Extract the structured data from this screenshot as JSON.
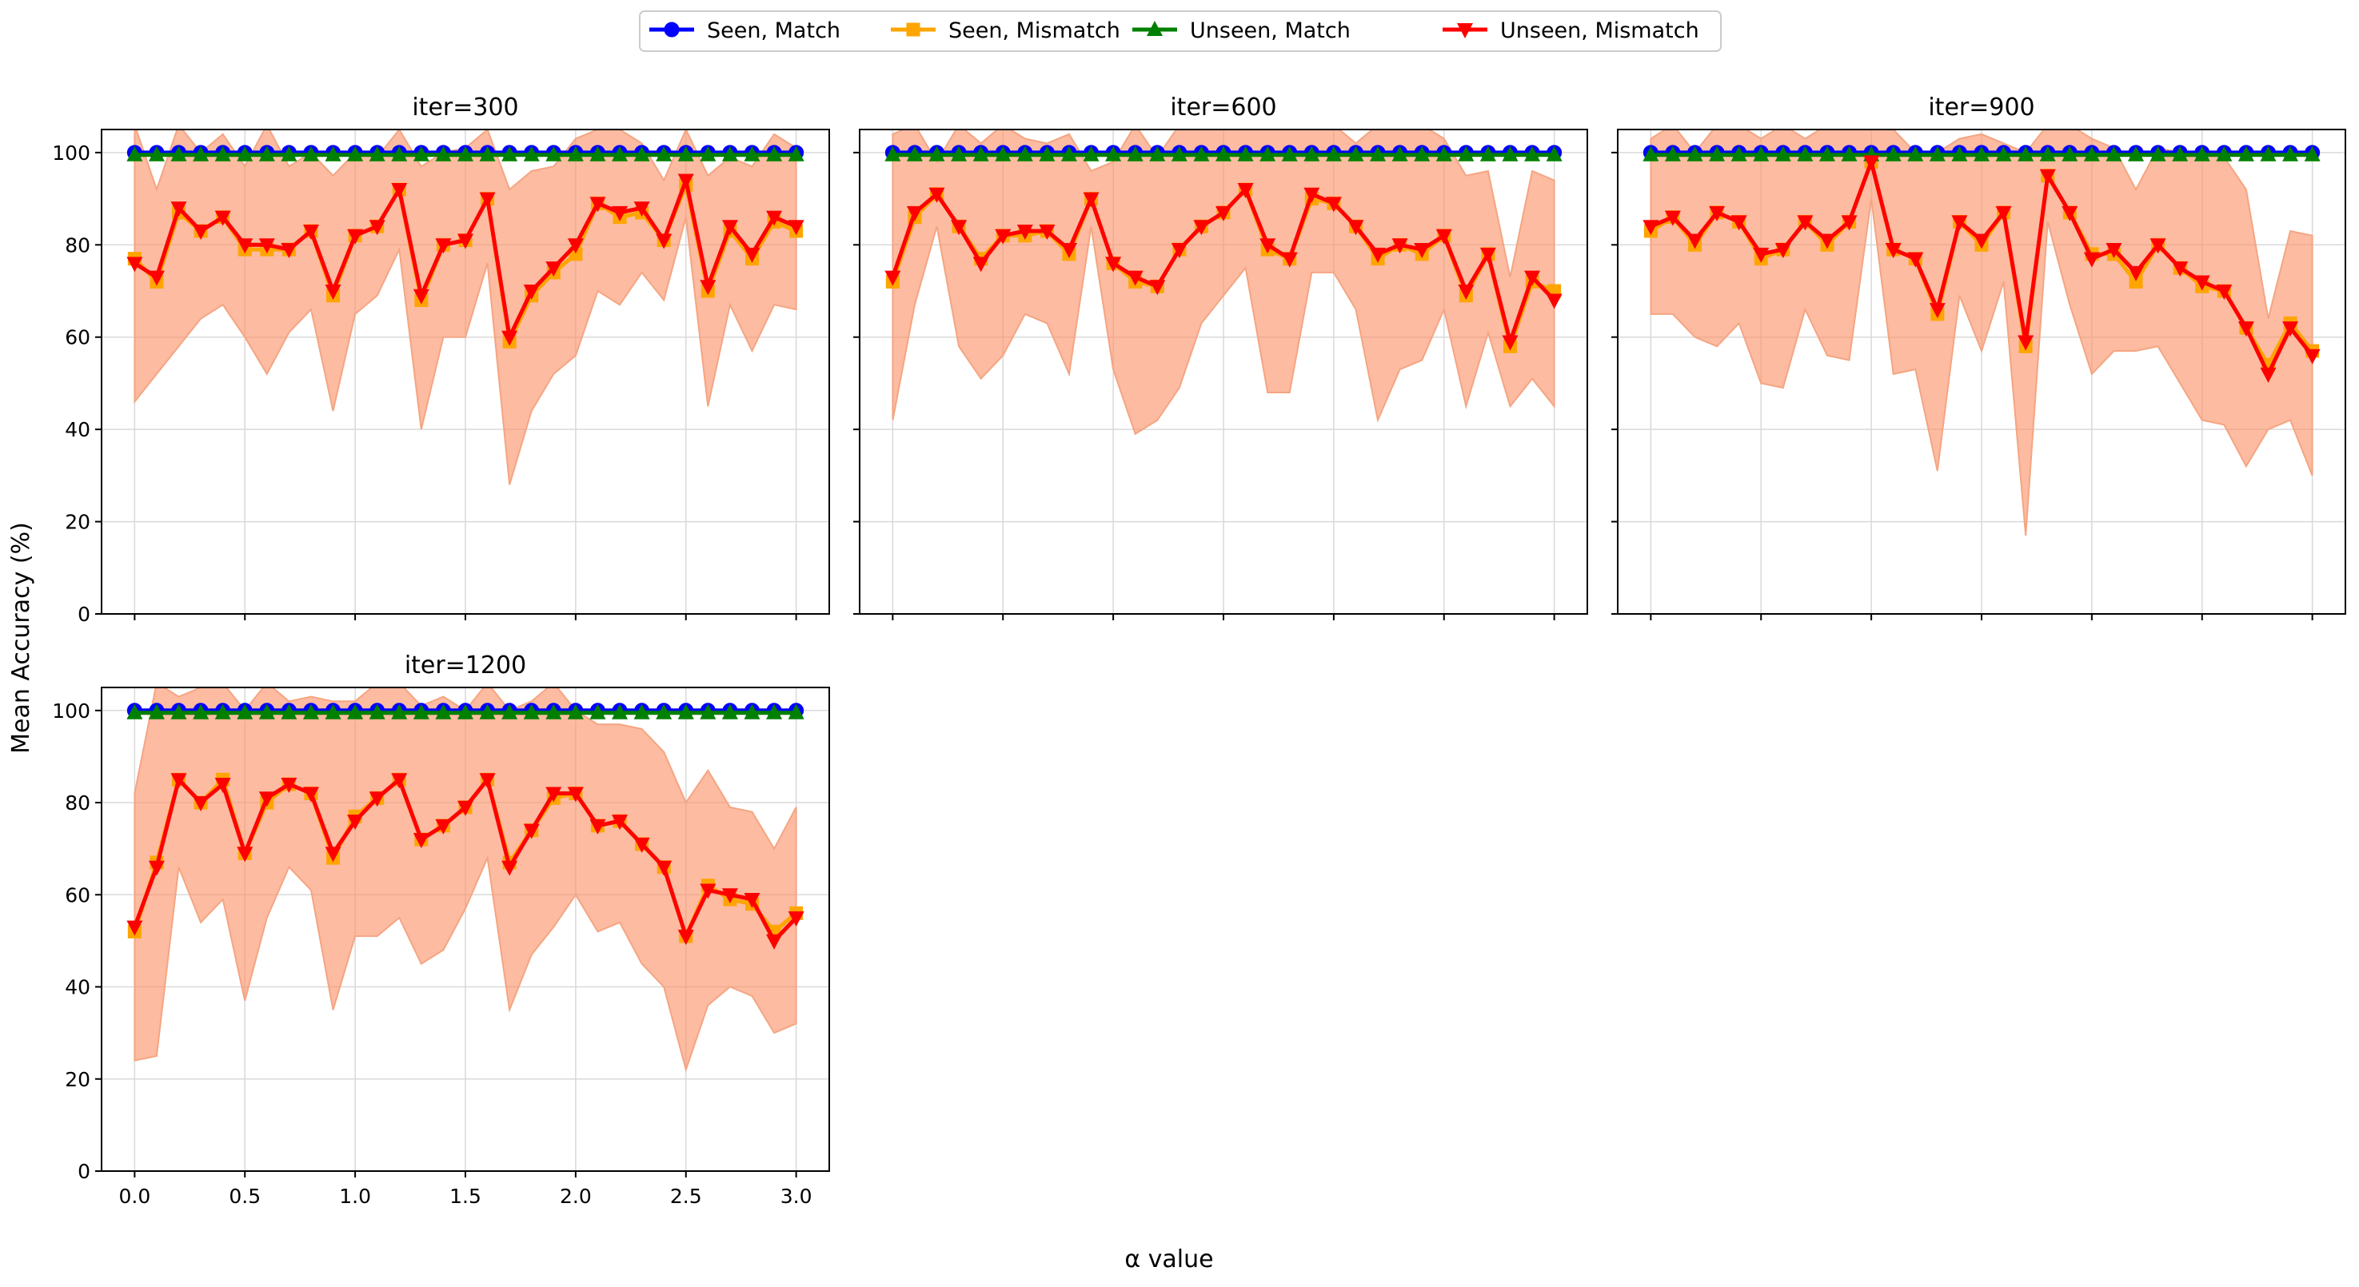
{
  "figure": {
    "ylabel": "Mean Accuracy (%)",
    "xlabel": "α value"
  },
  "legend": {
    "placement": "top-center",
    "entries": [
      {
        "label": "Seen, Match",
        "color": "#0000ff",
        "marker": "circle"
      },
      {
        "label": "Seen, Mismatch",
        "color": "#ffa500",
        "marker": "square"
      },
      {
        "label": "Unseen, Match",
        "color": "#008000",
        "marker": "triangle-up"
      },
      {
        "label": "Unseen, Mismatch",
        "color": "#ff0000",
        "marker": "triangle-down"
      }
    ]
  },
  "chart_data": [
    {
      "type": "line",
      "title": "iter=300",
      "x": [
        0.0,
        0.1,
        0.2,
        0.3,
        0.4,
        0.5,
        0.6,
        0.7,
        0.8,
        0.9,
        1.0,
        1.1,
        1.2,
        1.3,
        1.4,
        1.5,
        1.6,
        1.7,
        1.8,
        1.9,
        2.0,
        2.1,
        2.2,
        2.3,
        2.4,
        2.5,
        2.6,
        2.7,
        2.8,
        2.9,
        3.0
      ],
      "xticks": [
        "0.0",
        "0.5",
        "1.0",
        "1.5",
        "2.0",
        "2.5",
        "3.0"
      ],
      "yticks": [
        "0",
        "20",
        "40",
        "60",
        "80",
        "100"
      ],
      "xlim": [
        -0.15,
        3.15
      ],
      "ylim": [
        0,
        105
      ],
      "grid": true,
      "series": [
        {
          "name": "Seen, Match",
          "values": [
            100,
            100,
            100,
            100,
            100,
            100,
            100,
            100,
            100,
            100,
            100,
            100,
            100,
            100,
            100,
            100,
            100,
            100,
            100,
            100,
            100,
            100,
            100,
            100,
            100,
            100,
            100,
            100,
            100,
            100,
            100
          ]
        },
        {
          "name": "Seen, Mismatch",
          "values": [
            77,
            72,
            87,
            83,
            86,
            79,
            79,
            79,
            83,
            69,
            82,
            84,
            92,
            68,
            80,
            81,
            90,
            59,
            69,
            74,
            78,
            89,
            86,
            87,
            81,
            93,
            70,
            83,
            77,
            85,
            83
          ]
        },
        {
          "name": "Unseen, Match",
          "values": [
            99.5,
            99.5,
            99.5,
            99.5,
            99.5,
            99.5,
            99.5,
            99.5,
            99.5,
            99.5,
            99.5,
            99.5,
            99.5,
            99.5,
            99.5,
            99.5,
            99.5,
            99.5,
            99.5,
            99.5,
            99.5,
            99.5,
            99.5,
            99.5,
            99.5,
            99.5,
            99.5,
            99.5,
            99.5,
            99.5,
            99.5
          ]
        },
        {
          "name": "Unseen, Mismatch",
          "values": [
            76,
            73,
            88,
            83,
            86,
            80,
            80,
            79,
            83,
            70,
            82,
            84,
            92,
            69,
            80,
            81,
            90,
            60,
            70,
            75,
            80,
            89,
            87,
            88,
            81,
            94,
            71,
            84,
            78,
            86,
            84
          ]
        }
      ],
      "band": {
        "lower": [
          46,
          52,
          58,
          64,
          67,
          60,
          52,
          61,
          66,
          44,
          65,
          69,
          79,
          40,
          60,
          60,
          76,
          28,
          44,
          52,
          56,
          70,
          67,
          74,
          68,
          86,
          45,
          67,
          57,
          67,
          66
        ],
        "upper": [
          106,
          92,
          106,
          100,
          104,
          97,
          106,
          97,
          100,
          95,
          100,
          99,
          105,
          97,
          100,
          101,
          105,
          92,
          96,
          97,
          103,
          105,
          105,
          102,
          94,
          105,
          95,
          99,
          97,
          104,
          101
        ]
      }
    },
    {
      "type": "line",
      "title": "iter=600",
      "x": [
        0.0,
        0.1,
        0.2,
        0.3,
        0.4,
        0.5,
        0.6,
        0.7,
        0.8,
        0.9,
        1.0,
        1.1,
        1.2,
        1.3,
        1.4,
        1.5,
        1.6,
        1.7,
        1.8,
        1.9,
        2.0,
        2.1,
        2.2,
        2.3,
        2.4,
        2.5,
        2.6,
        2.7,
        2.8,
        2.9,
        3.0
      ],
      "xticks": [
        "0.0",
        "0.5",
        "1.0",
        "1.5",
        "2.0",
        "2.5",
        "3.0"
      ],
      "yticks": [
        "0",
        "20",
        "40",
        "60",
        "80",
        "100"
      ],
      "xlim": [
        -0.15,
        3.15
      ],
      "ylim": [
        0,
        105
      ],
      "grid": true,
      "series": [
        {
          "name": "Seen, Match",
          "values": [
            100,
            100,
            100,
            100,
            100,
            100,
            100,
            100,
            100,
            100,
            100,
            100,
            100,
            100,
            100,
            100,
            100,
            100,
            100,
            100,
            100,
            100,
            100,
            100,
            100,
            100,
            100,
            100,
            100,
            100,
            100
          ]
        },
        {
          "name": "Seen, Mismatch",
          "values": [
            72,
            86,
            91,
            84,
            77,
            82,
            82,
            83,
            78,
            90,
            76,
            72,
            71,
            79,
            84,
            87,
            92,
            79,
            77,
            90,
            89,
            84,
            77,
            80,
            78,
            82,
            69,
            78,
            58,
            72,
            70
          ]
        },
        {
          "name": "Unseen, Match",
          "values": [
            99.5,
            99.5,
            99.5,
            99.5,
            99.5,
            99.5,
            99.5,
            99.5,
            99.5,
            99.5,
            99.5,
            99.5,
            99.5,
            99.5,
            99.5,
            99.5,
            99.5,
            99.5,
            99.5,
            99.5,
            99.5,
            99.5,
            99.5,
            99.5,
            99.5,
            99.5,
            99.5,
            99.5,
            99.5,
            99.5,
            99.5
          ]
        },
        {
          "name": "Unseen, Mismatch",
          "values": [
            73,
            87,
            91,
            84,
            76,
            82,
            83,
            83,
            79,
            90,
            76,
            73,
            71,
            79,
            84,
            87,
            92,
            80,
            77,
            91,
            89,
            84,
            78,
            80,
            79,
            82,
            70,
            78,
            59,
            73,
            68
          ]
        }
      ],
      "band": {
        "lower": [
          42,
          67,
          84,
          58,
          51,
          56,
          65,
          63,
          52,
          84,
          53,
          39,
          42,
          49,
          63,
          69,
          75,
          48,
          48,
          74,
          74,
          66,
          42,
          53,
          55,
          66,
          45,
          61,
          45,
          51,
          45
        ],
        "upper": [
          104,
          106,
          98,
          106,
          102,
          106,
          103,
          102,
          104,
          96,
          98,
          106,
          99,
          106,
          106,
          106,
          106,
          106,
          106,
          106,
          106,
          102,
          106,
          105,
          106,
          103,
          95,
          96,
          73,
          96,
          94
        ]
      }
    },
    {
      "type": "line",
      "title": "iter=900",
      "x": [
        0.0,
        0.1,
        0.2,
        0.3,
        0.4,
        0.5,
        0.6,
        0.7,
        0.8,
        0.9,
        1.0,
        1.1,
        1.2,
        1.3,
        1.4,
        1.5,
        1.6,
        1.7,
        1.8,
        1.9,
        2.0,
        2.1,
        2.2,
        2.3,
        2.4,
        2.5,
        2.6,
        2.7,
        2.8,
        2.9,
        3.0
      ],
      "xticks": [
        "0.0",
        "0.5",
        "1.0",
        "1.5",
        "2.0",
        "2.5",
        "3.0"
      ],
      "yticks": [
        "0",
        "20",
        "40",
        "60",
        "80",
        "100"
      ],
      "xlim": [
        -0.15,
        3.15
      ],
      "ylim": [
        0,
        105
      ],
      "grid": true,
      "series": [
        {
          "name": "Seen, Match",
          "values": [
            100,
            100,
            100,
            100,
            100,
            100,
            100,
            100,
            100,
            100,
            100,
            100,
            100,
            100,
            100,
            100,
            100,
            100,
            100,
            100,
            100,
            100,
            100,
            100,
            100,
            100,
            100,
            100,
            100,
            100,
            100
          ]
        },
        {
          "name": "Seen, Mismatch",
          "values": [
            83,
            86,
            80,
            87,
            85,
            77,
            79,
            85,
            80,
            85,
            98,
            79,
            77,
            65,
            85,
            80,
            87,
            58,
            95,
            87,
            78,
            78,
            72,
            80,
            75,
            71,
            70,
            62,
            54,
            63,
            57
          ]
        },
        {
          "name": "Unseen, Match",
          "values": [
            99.5,
            99.5,
            99.5,
            99.5,
            99.5,
            99.5,
            99.5,
            99.5,
            99.5,
            99.5,
            99.5,
            99.5,
            99.5,
            99.5,
            99.5,
            99.5,
            99.5,
            99.5,
            99.5,
            99.5,
            99.5,
            99.5,
            99.5,
            99.5,
            99.5,
            99.5,
            99.5,
            99.5,
            99.5,
            99.5,
            99.5
          ]
        },
        {
          "name": "Unseen, Mismatch",
          "values": [
            84,
            86,
            81,
            87,
            85,
            78,
            79,
            85,
            81,
            85,
            98,
            79,
            77,
            66,
            85,
            81,
            87,
            59,
            95,
            87,
            77,
            79,
            74,
            80,
            75,
            72,
            70,
            62,
            52,
            62,
            56
          ]
        }
      ],
      "band": {
        "lower": [
          65,
          65,
          60,
          58,
          63,
          50,
          49,
          66,
          56,
          55,
          90,
          52,
          53,
          31,
          69,
          57,
          72,
          17,
          85,
          67,
          52,
          57,
          57,
          58,
          50,
          42,
          41,
          32,
          40,
          42,
          30
        ],
        "upper": [
          103,
          106,
          100,
          106,
          106,
          103,
          106,
          103,
          106,
          106,
          106,
          105,
          100,
          100,
          103,
          104,
          102,
          100,
          106,
          106,
          103,
          101,
          92,
          101,
          100,
          100,
          99,
          92,
          64,
          83,
          82
        ]
      }
    },
    {
      "type": "line",
      "title": "iter=1200",
      "x": [
        0.0,
        0.1,
        0.2,
        0.3,
        0.4,
        0.5,
        0.6,
        0.7,
        0.8,
        0.9,
        1.0,
        1.1,
        1.2,
        1.3,
        1.4,
        1.5,
        1.6,
        1.7,
        1.8,
        1.9,
        2.0,
        2.1,
        2.2,
        2.3,
        2.4,
        2.5,
        2.6,
        2.7,
        2.8,
        2.9,
        3.0
      ],
      "xticks": [
        "0.0",
        "0.5",
        "1.0",
        "1.5",
        "2.0",
        "2.5",
        "3.0"
      ],
      "yticks": [
        "0",
        "20",
        "40",
        "60",
        "80",
        "100"
      ],
      "xlim": [
        -0.15,
        3.15
      ],
      "ylim": [
        0,
        105
      ],
      "grid": true,
      "series": [
        {
          "name": "Seen, Match",
          "values": [
            100,
            100,
            100,
            100,
            100,
            100,
            100,
            100,
            100,
            100,
            100,
            100,
            100,
            100,
            100,
            100,
            100,
            100,
            100,
            100,
            100,
            100,
            100,
            100,
            100,
            100,
            100,
            100,
            100,
            100,
            100
          ]
        },
        {
          "name": "Seen, Mismatch",
          "values": [
            52,
            67,
            85,
            80,
            85,
            69,
            80,
            84,
            82,
            68,
            77,
            81,
            85,
            72,
            75,
            79,
            85,
            67,
            74,
            81,
            82,
            75,
            76,
            71,
            66,
            51,
            62,
            59,
            58,
            52,
            56
          ]
        },
        {
          "name": "Unseen, Match",
          "values": [
            99.5,
            99.5,
            99.5,
            99.5,
            99.5,
            99.5,
            99.5,
            99.5,
            99.5,
            99.5,
            99.5,
            99.5,
            99.5,
            99.5,
            99.5,
            99.5,
            99.5,
            99.5,
            99.5,
            99.5,
            99.5,
            99.5,
            99.5,
            99.5,
            99.5,
            99.5,
            99.5,
            99.5,
            99.5,
            99.5,
            99.5
          ]
        },
        {
          "name": "Unseen, Mismatch",
          "values": [
            53,
            66,
            85,
            80,
            84,
            69,
            81,
            84,
            82,
            69,
            76,
            81,
            85,
            72,
            75,
            79,
            85,
            66,
            74,
            82,
            82,
            75,
            76,
            71,
            66,
            51,
            61,
            60,
            59,
            50,
            55
          ]
        }
      ],
      "band": {
        "lower": [
          24,
          25,
          66,
          54,
          59,
          37,
          55,
          66,
          61,
          35,
          51,
          51,
          55,
          45,
          48,
          57,
          68,
          35,
          47,
          53,
          60,
          52,
          54,
          45,
          40,
          22,
          36,
          40,
          38,
          30,
          32
        ],
        "upper": [
          82,
          106,
          103,
          105,
          106,
          100,
          106,
          102,
          103,
          102,
          102,
          106,
          106,
          101,
          103,
          100,
          106,
          100,
          102,
          106,
          100,
          97,
          97,
          96,
          91,
          80,
          87,
          79,
          78,
          70,
          79
        ]
      }
    }
  ],
  "colors": {
    "band_fill": "#fc8d62",
    "band_alpha": 0.6,
    "grid": "#d9d9d9"
  }
}
